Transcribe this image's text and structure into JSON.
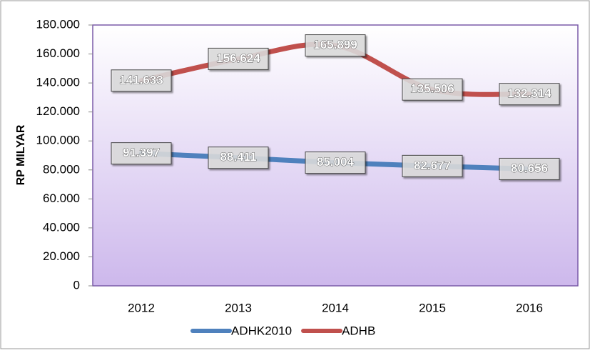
{
  "chart_data": {
    "type": "line",
    "y_label": "RP MILYAR",
    "categories": [
      "2012",
      "2013",
      "2014",
      "2015",
      "2016"
    ],
    "series": [
      {
        "name": "ADHK2010",
        "color": "#4f81bd",
        "values": [
          91397,
          88411,
          85004,
          82677,
          80656
        ],
        "value_labels": [
          "91.397",
          "88.411",
          "85.004",
          "82.677",
          "80.656"
        ]
      },
      {
        "name": "ADHB",
        "color": "#c0504d",
        "values": [
          141633,
          156624,
          165899,
          135506,
          132314
        ],
        "value_labels": [
          "141.633",
          "156.624",
          "165.899",
          "135.506",
          "132.314"
        ]
      }
    ],
    "ylim": [
      0,
      180000
    ],
    "yticks": [
      {
        "value": 0,
        "label": "0"
      },
      {
        "value": 20000,
        "label": "20.000"
      },
      {
        "value": 40000,
        "label": "40.000"
      },
      {
        "value": 60000,
        "label": "60.000"
      },
      {
        "value": 80000,
        "label": "80.000"
      },
      {
        "value": 100000,
        "label": "100.000"
      },
      {
        "value": 120000,
        "label": "120.000"
      },
      {
        "value": 140000,
        "label": "140.000"
      },
      {
        "value": 160000,
        "label": "160.000"
      },
      {
        "value": 180000,
        "label": "180.000"
      }
    ],
    "legend": "bottom"
  }
}
